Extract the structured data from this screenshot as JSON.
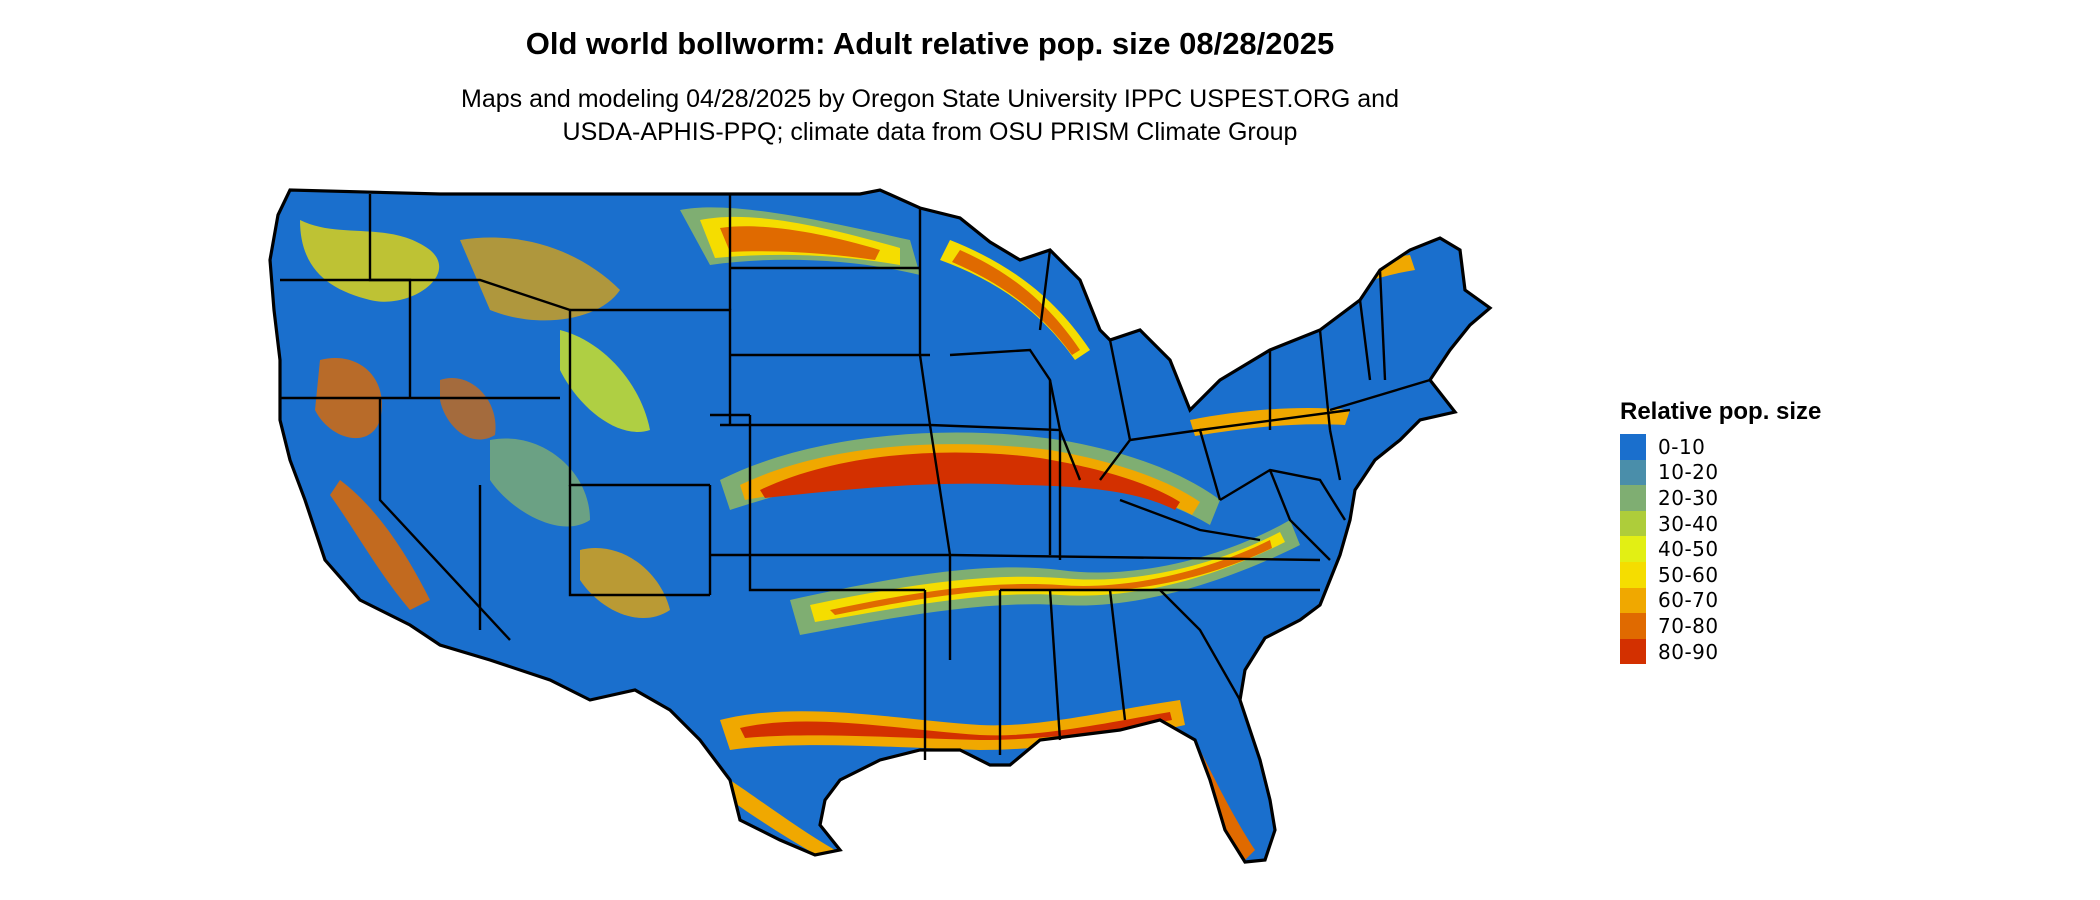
{
  "map": {
    "title": "Old world bollworm: Adult relative pop. size 08/28/2025",
    "subtitle_line1": "Maps and modeling 04/28/2025 by Oregon State University IPPC USPEST.ORG and",
    "subtitle_line2": "USDA-APHIS-PPQ; climate data from OSU PRISM Climate Group",
    "region": "contiguous-united-states"
  },
  "legend": {
    "title": "Relative pop. size",
    "items": [
      {
        "label": "0-10",
        "color": "#1a6fcd"
      },
      {
        "label": "10-20",
        "color": "#4a8eaa"
      },
      {
        "label": "20-30",
        "color": "#7fae72"
      },
      {
        "label": "30-40",
        "color": "#aecd3a"
      },
      {
        "label": "40-50",
        "color": "#e2ef14"
      },
      {
        "label": "50-60",
        "color": "#f5dd00"
      },
      {
        "label": "60-70",
        "color": "#f0a800"
      },
      {
        "label": "70-80",
        "color": "#e06a00"
      },
      {
        "label": "80-90",
        "color": "#d33000"
      }
    ]
  }
}
